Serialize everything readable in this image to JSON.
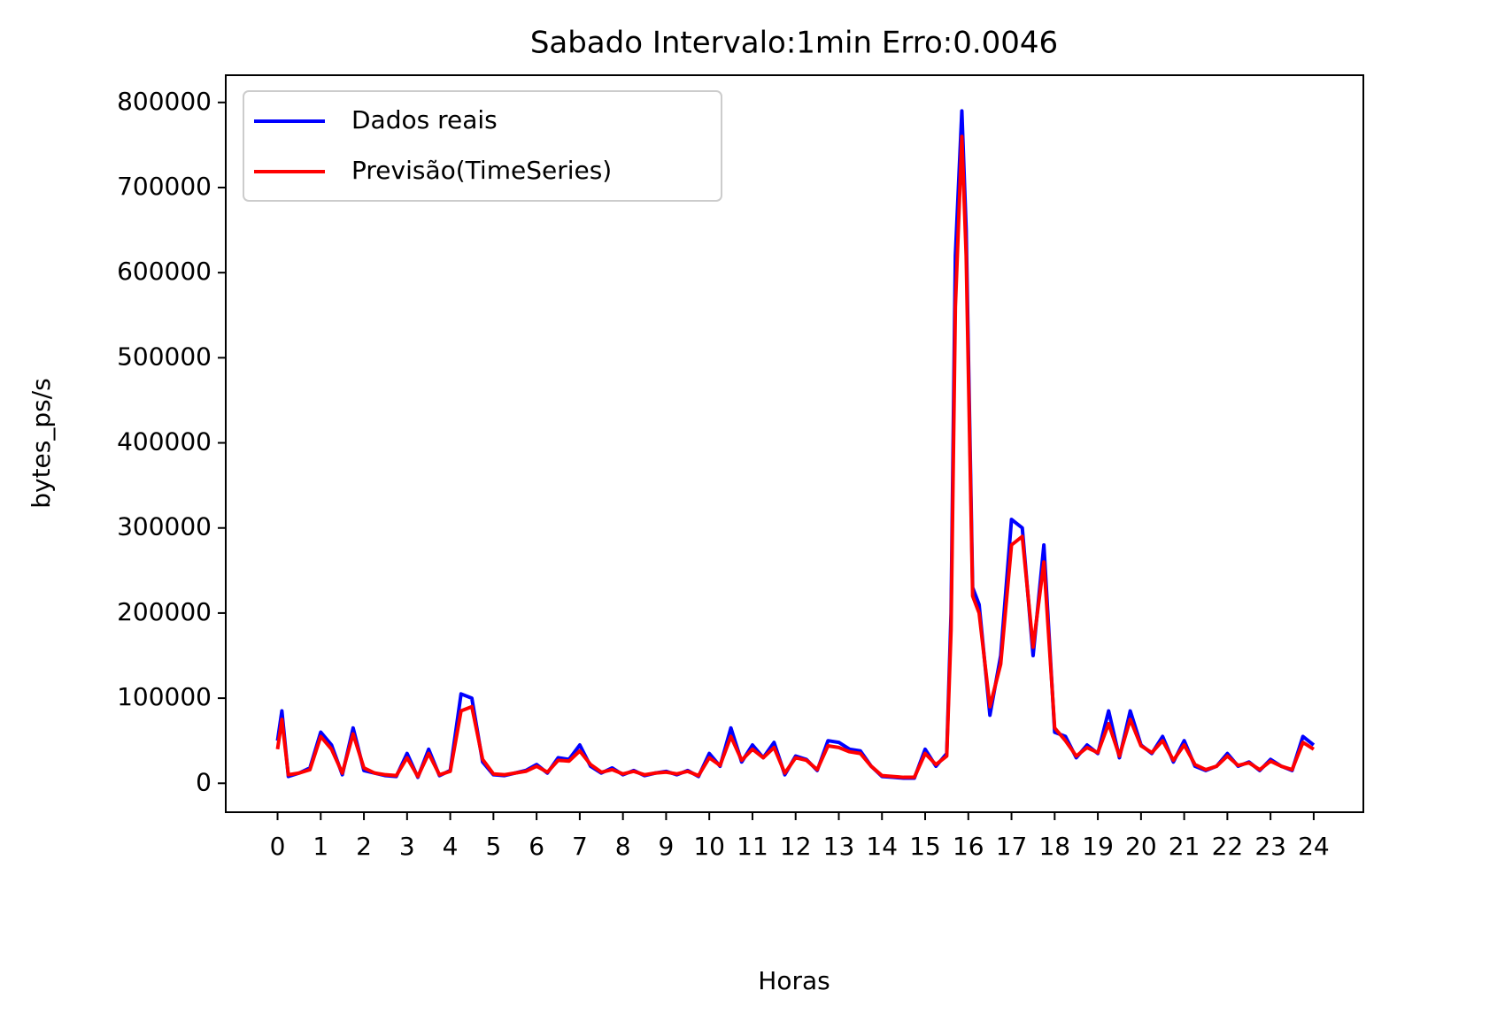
{
  "chart_data": {
    "type": "line",
    "title": "Sabado Intervalo:1min Erro:0.0046",
    "xlabel": "Horas",
    "ylabel": "bytes_ps/s",
    "x": [
      0,
      0.1,
      0.25,
      0.5,
      0.75,
      1,
      1.25,
      1.5,
      1.75,
      2,
      2.25,
      2.5,
      2.75,
      3,
      3.25,
      3.5,
      3.75,
      4,
      4.25,
      4.5,
      4.75,
      5,
      5.25,
      5.5,
      5.75,
      6,
      6.25,
      6.5,
      6.75,
      7,
      7.25,
      7.5,
      7.75,
      8,
      8.25,
      8.5,
      8.75,
      9,
      9.25,
      9.5,
      9.75,
      10,
      10.25,
      10.5,
      10.75,
      11,
      11.25,
      11.5,
      11.75,
      12,
      12.25,
      12.5,
      12.75,
      13,
      13.25,
      13.5,
      13.75,
      14,
      14.25,
      14.5,
      14.75,
      15,
      15.25,
      15.5,
      15.6,
      15.7,
      15.85,
      15.95,
      16.1,
      16.25,
      16.5,
      16.75,
      17,
      17.25,
      17.5,
      17.75,
      18,
      18.25,
      18.5,
      18.75,
      19,
      19.25,
      19.5,
      19.75,
      20,
      20.25,
      20.5,
      20.75,
      21,
      21.25,
      21.5,
      21.75,
      22,
      22.25,
      22.5,
      22.75,
      23,
      23.25,
      23.5,
      23.75,
      24
    ],
    "series": [
      {
        "name": "Dados reais",
        "color": "#0000ff",
        "values": [
          50000,
          85000,
          8000,
          12000,
          18000,
          60000,
          45000,
          10000,
          65000,
          15000,
          12000,
          9000,
          8000,
          35000,
          7000,
          40000,
          9000,
          15000,
          105000,
          100000,
          25000,
          10000,
          9000,
          12000,
          15000,
          22000,
          12000,
          30000,
          28000,
          45000,
          20000,
          12000,
          18000,
          10000,
          15000,
          9000,
          12000,
          14000,
          10000,
          15000,
          8000,
          35000,
          20000,
          65000,
          25000,
          45000,
          30000,
          48000,
          10000,
          32000,
          28000,
          15000,
          50000,
          48000,
          40000,
          38000,
          20000,
          8000,
          7000,
          6000,
          6000,
          40000,
          20000,
          35000,
          200000,
          620000,
          790000,
          650000,
          230000,
          210000,
          80000,
          150000,
          310000,
          300000,
          150000,
          280000,
          60000,
          55000,
          30000,
          45000,
          35000,
          85000,
          30000,
          85000,
          45000,
          35000,
          55000,
          25000,
          50000,
          20000,
          15000,
          20000,
          35000,
          20000,
          25000,
          15000,
          28000,
          20000,
          15000,
          55000,
          45000
        ]
      },
      {
        "name": "Previsão(TimeSeries)",
        "color": "#ff0000",
        "values": [
          40000,
          75000,
          10000,
          12000,
          16000,
          55000,
          40000,
          12000,
          58000,
          18000,
          12000,
          10000,
          9000,
          30000,
          8000,
          35000,
          10000,
          14000,
          85000,
          90000,
          28000,
          11000,
          10000,
          12000,
          14000,
          20000,
          13000,
          27000,
          26000,
          38000,
          22000,
          13000,
          16000,
          11000,
          14000,
          10000,
          12000,
          13000,
          11000,
          14000,
          9000,
          30000,
          21000,
          55000,
          27000,
          40000,
          30000,
          42000,
          12000,
          30000,
          27000,
          16000,
          44000,
          42000,
          37000,
          35000,
          20000,
          9000,
          8000,
          7000,
          7000,
          35000,
          22000,
          32000,
          180000,
          560000,
          760000,
          620000,
          220000,
          200000,
          90000,
          140000,
          280000,
          290000,
          160000,
          260000,
          65000,
          50000,
          32000,
          42000,
          36000,
          70000,
          32000,
          75000,
          44000,
          36000,
          50000,
          27000,
          45000,
          22000,
          16000,
          20000,
          32000,
          21000,
          24000,
          16000,
          26000,
          20000,
          16000,
          48000,
          40000
        ]
      }
    ],
    "xlim": [
      -1.2,
      25.15
    ],
    "ylim": [
      -34000,
      832000
    ],
    "xticks": [
      0,
      1,
      2,
      3,
      4,
      5,
      6,
      7,
      8,
      9,
      10,
      11,
      12,
      13,
      14,
      15,
      16,
      17,
      18,
      19,
      20,
      21,
      22,
      23,
      24
    ],
    "yticks": [
      0,
      100000,
      200000,
      300000,
      400000,
      500000,
      600000,
      700000,
      800000
    ],
    "legend": "upper left"
  }
}
